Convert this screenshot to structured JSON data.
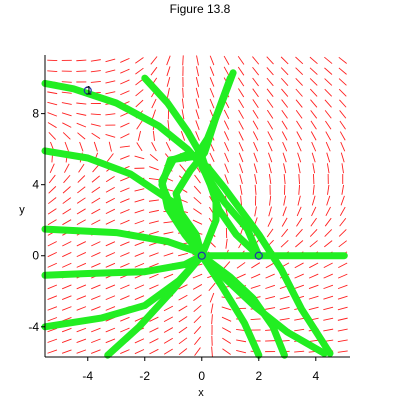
{
  "figure_title": "Figure 13.8",
  "colors": {
    "field": "#ff2020",
    "trajectory": "#22ee22",
    "axes": "#000000",
    "marker": "#2233aa"
  },
  "chart_data": {
    "type": "direction_field",
    "xlabel": "x",
    "ylabel": "y",
    "xlim": [
      -5.5,
      5.2
    ],
    "ylim": [
      -5.7,
      11.3
    ],
    "xticks": [
      -4,
      -2,
      0,
      2,
      4
    ],
    "yticks": [
      -4,
      0,
      4,
      8
    ],
    "xtick_labels": [
      "-4",
      "-2",
      "0",
      "2",
      "4"
    ],
    "ytick_labels": [
      "-4",
      "0",
      "4",
      "8"
    ],
    "grid": false,
    "initial_points": [
      {
        "label": "1",
        "x": -4,
        "y": 9.3
      },
      {
        "label": "",
        "x": 0,
        "y": 0
      },
      {
        "label": "",
        "x": 2,
        "y": 0
      }
    ],
    "trajectories": [
      {
        "points": [
          [
            -5.5,
            9.7
          ],
          [
            -4.5,
            9.4
          ],
          [
            -3,
            8.6
          ],
          [
            -1.5,
            7.3
          ],
          [
            -0.5,
            6
          ],
          [
            0,
            5.1
          ],
          [
            0.3,
            4
          ],
          [
            0.6,
            2.6
          ],
          [
            1.2,
            1.2
          ],
          [
            1.8,
            0.3
          ],
          [
            2,
            0
          ]
        ]
      },
      {
        "points": [
          [
            -2,
            10
          ],
          [
            -1.2,
            8.6
          ],
          [
            -0.5,
            7
          ],
          [
            0,
            5.6
          ],
          [
            0.3,
            4.2
          ],
          [
            0.5,
            3
          ],
          [
            0.5,
            2
          ],
          [
            0.2,
            0.8
          ],
          [
            0,
            0
          ]
        ]
      },
      {
        "points": [
          [
            -5.5,
            5.9
          ],
          [
            -4,
            5.5
          ],
          [
            -2.5,
            4.6
          ],
          [
            -1,
            3
          ],
          [
            -0.2,
            1.2
          ],
          [
            0,
            0
          ]
        ]
      },
      {
        "points": [
          [
            -5.5,
            1.5
          ],
          [
            -3,
            1.3
          ],
          [
            -1.2,
            0.8
          ],
          [
            -0.3,
            0.3
          ],
          [
            0,
            0
          ]
        ]
      },
      {
        "points": [
          [
            -5.5,
            -1.1
          ],
          [
            -4,
            -1
          ],
          [
            -2,
            -0.9
          ],
          [
            -0.6,
            -0.5
          ],
          [
            0,
            0
          ]
        ]
      },
      {
        "points": [
          [
            -5.5,
            -4
          ],
          [
            -3.5,
            -3.5
          ],
          [
            -2,
            -2.8
          ],
          [
            -0.8,
            -1.4
          ],
          [
            0,
            0
          ]
        ]
      },
      {
        "points": [
          [
            -3.3,
            -5.6
          ],
          [
            -2.2,
            -4
          ],
          [
            -1,
            -1.9
          ],
          [
            0,
            0
          ]
        ]
      },
      {
        "points": [
          [
            0,
            0
          ],
          [
            0.7,
            -1.7
          ],
          [
            1.5,
            -3.8
          ],
          [
            2,
            -5.6
          ]
        ]
      },
      {
        "points": [
          [
            0,
            0
          ],
          [
            1,
            -1.2
          ],
          [
            1.8,
            -2.4
          ],
          [
            2.5,
            -4
          ],
          [
            2.9,
            -5.6
          ]
        ]
      },
      {
        "points": [
          [
            0,
            0
          ],
          [
            2,
            0
          ],
          [
            5,
            0
          ]
        ]
      },
      {
        "points": [
          [
            0.2,
            5
          ],
          [
            0.8,
            3.8
          ],
          [
            1.4,
            2.5
          ],
          [
            2,
            1.2
          ],
          [
            2.8,
            -0.8
          ],
          [
            3.5,
            -3
          ],
          [
            4.5,
            -5.5
          ]
        ]
      },
      {
        "points": [
          [
            1.1,
            10.3
          ],
          [
            0.7,
            8.6
          ],
          [
            0.2,
            6.6
          ],
          [
            -0.2,
            5.6
          ],
          [
            -1.1,
            5.4
          ],
          [
            -1.4,
            4
          ],
          [
            -1,
            2.5
          ],
          [
            -0.4,
            1
          ],
          [
            0,
            0
          ]
        ]
      },
      {
        "points": [
          [
            1,
            10
          ],
          [
            0.5,
            7.8
          ],
          [
            0.1,
            5.8
          ],
          [
            -0.4,
            4.8
          ],
          [
            -0.9,
            3.5
          ],
          [
            -0.7,
            2.2
          ],
          [
            -0.3,
            1
          ],
          [
            0,
            0
          ]
        ]
      },
      {
        "points": [
          [
            -0.5,
            5.7
          ],
          [
            -1,
            5.4
          ],
          [
            -1.4,
            4.2
          ],
          [
            -1.2,
            2.7
          ],
          [
            -0.6,
            1.2
          ],
          [
            0,
            0
          ]
        ]
      },
      {
        "points": [
          [
            0,
            5
          ],
          [
            0.3,
            4.2
          ],
          [
            0.8,
            3
          ],
          [
            1.6,
            1.5
          ],
          [
            2,
            0
          ]
        ]
      },
      {
        "points": [
          [
            0,
            0
          ],
          [
            0.9,
            -1.4
          ],
          [
            1.9,
            -2.9
          ],
          [
            3,
            -4.3
          ],
          [
            4.3,
            -5.5
          ]
        ]
      }
    ]
  }
}
